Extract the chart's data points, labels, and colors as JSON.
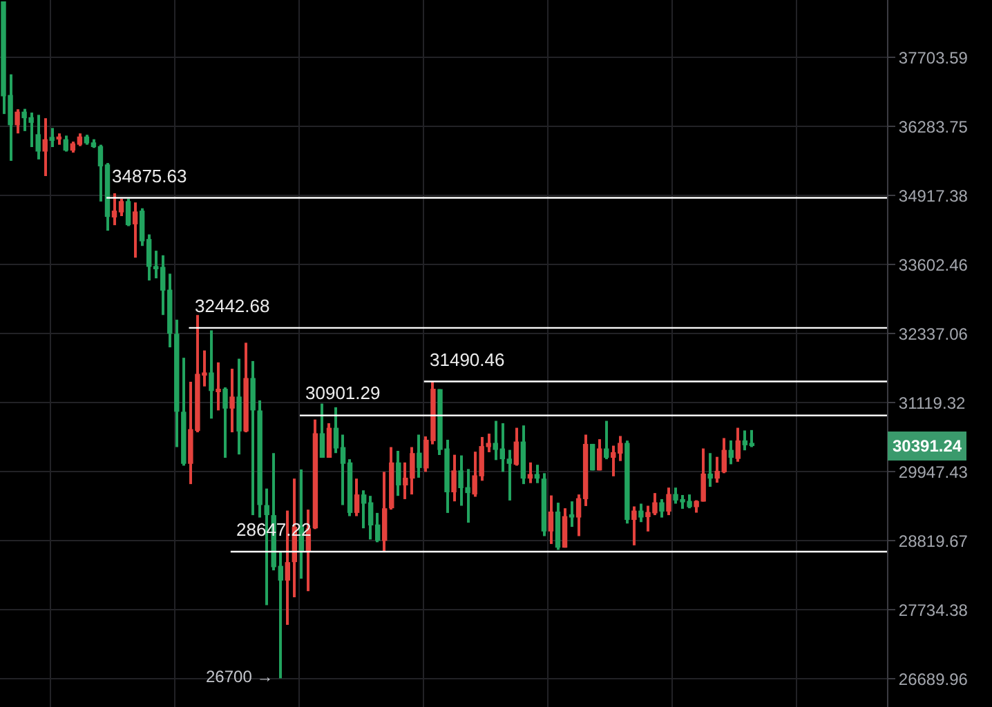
{
  "chart_data": {
    "type": "candlestick",
    "categories": [
      null,
      null,
      null,
      null,
      null,
      null,
      null,
      null,
      null,
      null,
      null,
      null,
      null,
      null,
      null,
      null,
      null,
      null,
      null,
      null,
      null,
      null,
      null,
      null,
      null,
      null,
      null,
      null,
      null,
      null,
      null,
      null,
      null,
      null,
      null,
      null,
      null,
      null,
      null,
      null,
      null,
      null,
      null,
      null,
      null,
      null,
      null,
      null,
      null,
      null,
      null,
      null,
      null,
      null,
      null,
      null,
      null,
      null,
      null,
      null,
      null,
      null,
      null,
      null,
      null,
      null,
      null,
      null,
      null,
      null,
      null,
      null,
      null,
      null,
      null,
      null,
      null,
      null,
      null,
      null,
      null,
      null,
      null,
      null,
      null,
      null,
      null,
      null,
      null,
      null,
      null,
      null,
      null,
      null,
      null,
      null,
      null,
      null,
      null,
      null,
      null,
      null,
      null,
      null,
      null,
      null,
      null,
      null,
      null,
      null,
      null,
      null,
      null,
      null,
      null,
      null,
      null,
      null,
      null,
      null,
      null,
      null,
      null,
      null,
      null,
      null,
      null,
      null
    ],
    "ohlc": [
      [
        38900,
        38900,
        36539,
        36900
      ],
      [
        36928,
        37354,
        35600,
        36312
      ],
      [
        36312,
        36636,
        36147,
        36587
      ],
      [
        36587,
        36644,
        36194,
        36454
      ],
      [
        36474,
        36568,
        35874,
        36360
      ],
      [
        36131,
        36522,
        35628,
        35784
      ],
      [
        35784,
        36454,
        35300,
        36030
      ],
      [
        36076,
        36256,
        35874,
        36021
      ],
      [
        36030,
        36147,
        35920,
        36084
      ],
      [
        36030,
        36103,
        35784,
        35803
      ],
      [
        35803,
        35983,
        35764,
        35948
      ],
      [
        35920,
        36147,
        35893,
        36084
      ],
      [
        36084,
        36120,
        35920,
        35948
      ],
      [
        35967,
        36030,
        35857,
        35874
      ],
      [
        35893,
        35920,
        34804,
        35491
      ],
      [
        35529,
        35557,
        34244,
        34507
      ],
      [
        34497,
        34964,
        34349,
        34628
      ],
      [
        34594,
        34857,
        34523,
        34812
      ],
      [
        34812,
        34857,
        34331,
        34349
      ],
      [
        34365,
        34786,
        33734,
        34612
      ],
      [
        34628,
        34673,
        33955,
        34042
      ],
      [
        34086,
        34173,
        33309,
        33562
      ],
      [
        33577,
        33865,
        33349,
        33527
      ],
      [
        33562,
        33779,
        32676,
        33122
      ],
      [
        33139,
        33435,
        32094,
        32337
      ],
      [
        32337,
        32590,
        30362,
        30965
      ],
      [
        30965,
        31908,
        30050,
        30081
      ],
      [
        30081,
        31485,
        29744,
        30667
      ],
      [
        30636,
        32676,
        30613,
        31624
      ],
      [
        31607,
        32038,
        31404,
        31648
      ],
      [
        31648,
        32398,
        30847,
        31324
      ],
      [
        31324,
        31826,
        30988,
        31363
      ],
      [
        31363,
        31387,
        30182,
        31019
      ],
      [
        31019,
        31714,
        30613,
        31227
      ],
      [
        31227,
        31891,
        30238,
        30627
      ],
      [
        30627,
        32176,
        30613,
        31551
      ],
      [
        31551,
        31850,
        29235,
        30988
      ],
      [
        30988,
        31161,
        29196,
        29399
      ],
      [
        29399,
        29670,
        27808,
        29235
      ],
      [
        29235,
        30261,
        28351,
        28401
      ],
      [
        28422,
        28639,
        26700,
        28190
      ],
      [
        28190,
        29309,
        27505,
        28481
      ],
      [
        28481,
        29835,
        27930,
        29045
      ],
      [
        29045,
        29987,
        28220,
        28655
      ],
      [
        28655,
        29325,
        28025,
        29022
      ],
      [
        29022,
        30831,
        29009,
        30597
      ],
      [
        30597,
        31105,
        30182,
        30182
      ],
      [
        30182,
        30768,
        30182,
        30690
      ],
      [
        30690,
        31042,
        30261,
        30339
      ],
      [
        30362,
        30573,
        29399,
        30081
      ],
      [
        30104,
        30158,
        29219,
        29271
      ],
      [
        29271,
        29835,
        29219,
        29573
      ],
      [
        29573,
        29641,
        29022,
        29422
      ],
      [
        29444,
        29550,
        28842,
        29068
      ],
      [
        29083,
        29271,
        28798,
        28820
      ],
      [
        28820,
        29947,
        28655,
        29347
      ],
      [
        29347,
        30362,
        29325,
        30104
      ],
      [
        30104,
        30299,
        29550,
        29722
      ],
      [
        29722,
        30104,
        29496,
        29850
      ],
      [
        29835,
        30362,
        29573,
        30261
      ],
      [
        30268,
        30573,
        29850,
        30011
      ],
      [
        30004,
        30543,
        29947,
        30486
      ],
      [
        30463,
        31490.46,
        30409,
        31363
      ],
      [
        31356,
        31356,
        30229,
        30315
      ],
      [
        30339,
        30486,
        29271,
        29609
      ],
      [
        29609,
        30233,
        29460,
        29971
      ],
      [
        29971,
        30222,
        29388,
        29677
      ],
      [
        29693,
        29994,
        29113,
        29596
      ],
      [
        29573,
        30285,
        29535,
        29889
      ],
      [
        29873,
        30533,
        29799,
        30379
      ],
      [
        30362,
        30590,
        30276,
        30433
      ],
      [
        30433,
        30808,
        30144,
        30315
      ],
      [
        30339,
        30768,
        29947,
        30158
      ],
      [
        30168,
        30315,
        29474,
        30081
      ],
      [
        30065,
        30690,
        30050,
        30456
      ],
      [
        30456,
        30730,
        29744,
        29835
      ],
      [
        29835,
        30104,
        29760,
        29911
      ],
      [
        29911,
        30065,
        29760,
        29835
      ],
      [
        29835,
        29925,
        28896,
        28971
      ],
      [
        28971,
        29557,
        28770,
        29293
      ],
      [
        29293,
        29438,
        28676,
        28711
      ],
      [
        28711,
        29347,
        28711,
        29219
      ],
      [
        29248,
        29460,
        29045,
        29196
      ],
      [
        29196,
        29573,
        28896,
        29512
      ],
      [
        29496,
        30573,
        29383,
        30416
      ],
      [
        30416,
        30416,
        29971,
        29971
      ],
      [
        29971,
        30496,
        29971,
        30339
      ],
      [
        30339,
        30808,
        30158,
        30182
      ],
      [
        30182,
        30386,
        29873,
        30276
      ],
      [
        30252,
        30550,
        30128,
        30433
      ],
      [
        30433,
        30472,
        29099,
        29158
      ],
      [
        29158,
        29377,
        28748,
        29309
      ],
      [
        29309,
        29422,
        29122,
        29196
      ],
      [
        29203,
        29388,
        28971,
        29286
      ],
      [
        29264,
        29596,
        29235,
        29444
      ],
      [
        29444,
        29496,
        29196,
        29293
      ],
      [
        29293,
        29686,
        29235,
        29580
      ],
      [
        29580,
        29686,
        29422,
        29474
      ],
      [
        29496,
        29564,
        29338,
        29444
      ],
      [
        29467,
        29573,
        29347,
        29365
      ],
      [
        29365,
        29478,
        29275,
        29467
      ],
      [
        29456,
        30339,
        29456,
        29918
      ],
      [
        29918,
        30261,
        29699,
        29835
      ],
      [
        29835,
        30198,
        29767,
        29964
      ],
      [
        29941,
        30515,
        29925,
        30315
      ],
      [
        30315,
        30475,
        30074,
        30182
      ],
      [
        30163,
        30690,
        30116,
        30475
      ],
      [
        30475,
        30644,
        30308,
        30393
      ],
      [
        30433,
        30651,
        30362,
        30391.24
      ],
      null,
      null,
      null,
      null,
      null,
      null,
      null,
      null,
      null,
      null,
      null,
      null,
      null,
      null,
      null,
      null,
      null,
      null,
      null
    ],
    "colors": [
      "#22a45f",
      "#22a45f",
      "#e4423d",
      "#22a45f",
      "#22a45f",
      "#22a45f",
      "#e4423d",
      "#22a45f",
      "#e4423d",
      "#22a45f",
      "#e4423d",
      "#e4423d",
      "#22a45f",
      "#22a45f",
      "#22a45f",
      "#22a45f",
      "#e4423d",
      "#e4423d",
      "#22a45f",
      "#e4423d",
      "#22a45f",
      "#22a45f",
      "#22a45f",
      "#22a45f",
      "#22a45f",
      "#22a45f",
      "#22a45f",
      "#e4423d",
      "#e4423d",
      "#e4423d",
      "#22a45f",
      "#e4423d",
      "#22a45f",
      "#e4423d",
      "#22a45f",
      "#e4423d",
      "#22a45f",
      "#22a45f",
      "#22a45f",
      "#22a45f",
      "#22a45f",
      "#e4423d",
      "#e4423d",
      "#22a45f",
      "#e4423d",
      "#e4423d",
      "#22a45f",
      "#e4423d",
      "#22a45f",
      "#22a45f",
      "#22a45f",
      "#e4423d",
      "#22a45f",
      "#22a45f",
      "#22a45f",
      "#e4423d",
      "#e4423d",
      "#22a45f",
      "#e4423d",
      "#e4423d",
      "#22a45f",
      "#e4423d",
      "#e4423d",
      "#22a45f",
      "#22a45f",
      "#e4423d",
      "#22a45f",
      "#22a45f",
      "#e4423d",
      "#e4423d",
      "#e4423d",
      "#22a45f",
      "#22a45f",
      "#22a45f",
      "#e4423d",
      "#22a45f",
      "#e4423d",
      "#22a45f",
      "#22a45f",
      "#e4423d",
      "#22a45f",
      "#e4423d",
      "#22a45f",
      "#e4423d",
      "#e4423d",
      "#22a45f",
      "#e4423d",
      "#22a45f",
      "#e4423d",
      "#e4423d",
      "#22a45f",
      "#e4423d",
      "#22a45f",
      "#e4423d",
      "#e4423d",
      "#22a45f",
      "#e4423d",
      "#22a45f",
      "#22a45f",
      "#22a45f",
      "#e4423d",
      "#e4423d",
      "#22a45f",
      "#e4423d",
      "#e4423d",
      "#22a45f",
      "#e4423d",
      "#22a45f",
      "#22a45f",
      null,
      null,
      null,
      null,
      null,
      null,
      null,
      null,
      null,
      null,
      null,
      null,
      null,
      null,
      null,
      null,
      null,
      null,
      null
    ],
    "ylim": [
      26277,
      38930
    ],
    "yticks": [
      37703.59,
      36283.75,
      34917.38,
      33602.46,
      32337.06,
      31119.32,
      29947.43,
      28819.67,
      27734.38,
      26689.96
    ],
    "log": true,
    "grid": true,
    "tick_labels": "y",
    "ref_lines": [
      {
        "axis": "y",
        "value": 34875.63,
        "label": "34875.63",
        "color": "#ffffff"
      },
      {
        "axis": "y",
        "value": 32442.68,
        "label": "32442.68",
        "color": "#ffffff"
      },
      {
        "axis": "y",
        "value": 31490.46,
        "label": "31490.46",
        "color": "#ffffff"
      },
      {
        "axis": "y",
        "value": 30901.29,
        "label": "30901.29",
        "color": "#ffffff"
      },
      {
        "axis": "y",
        "value": 28647.22,
        "label": "28647.22",
        "color": "#ffffff"
      }
    ],
    "annotations": [
      "26700 →",
      "30391.24"
    ]
  }
}
